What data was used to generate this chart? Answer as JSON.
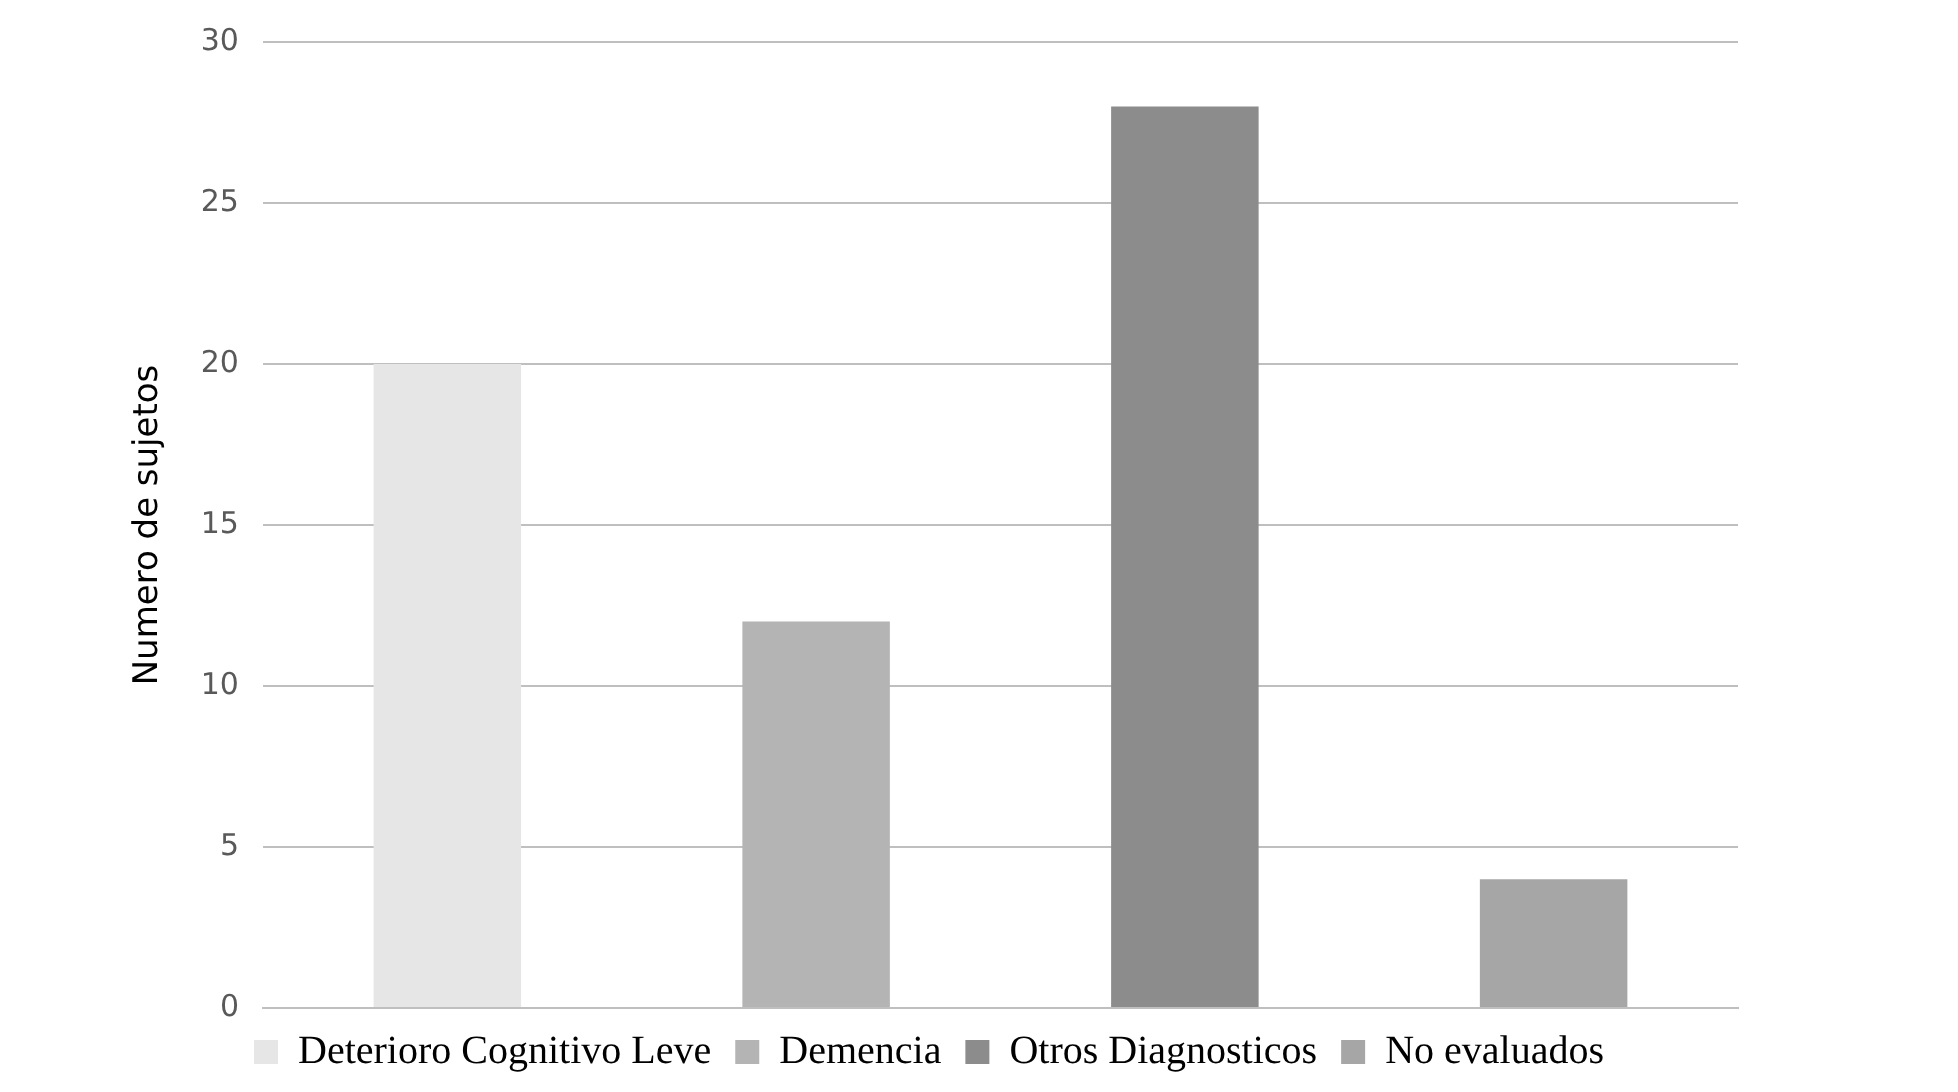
{
  "chart_data": {
    "type": "bar",
    "ylabel": "Numero de sujetos",
    "categories": [
      null,
      null,
      null,
      null
    ],
    "series": [
      {
        "name": "Deterioro Cognitivo Leve",
        "color": "#e6e6e6",
        "values": [
          20,
          null,
          null,
          null
        ]
      },
      {
        "name": "Demencia",
        "color": "#b4b4b4",
        "values": [
          null,
          12,
          null,
          null
        ]
      },
      {
        "name": "Otros Diagnosticos",
        "color": "#8c8c8c",
        "values": [
          null,
          null,
          28,
          null
        ]
      },
      {
        "name": "No evaluados",
        "color": "#a6a6a6",
        "values": [
          null,
          null,
          null,
          4
        ]
      }
    ],
    "ylim": [
      0,
      30
    ],
    "yticks": [
      0,
      5,
      10,
      15,
      20,
      25,
      30
    ],
    "grid": "y",
    "legend": "bottom"
  }
}
